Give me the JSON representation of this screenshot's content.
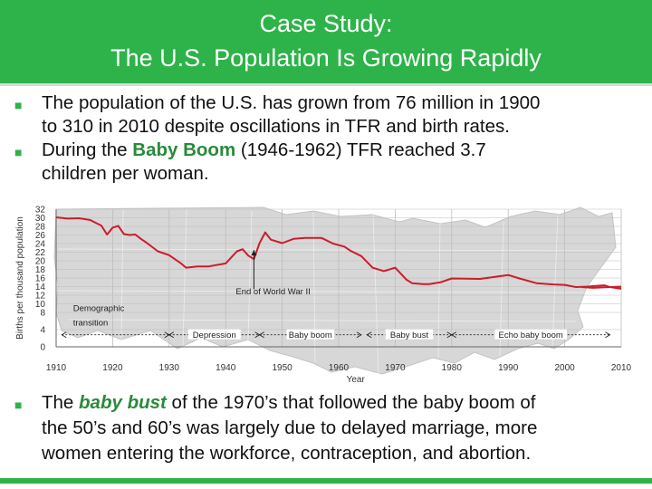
{
  "slide": {
    "title_line1": "Case Study:",
    "title_line2": "The U.S. Population Is Growing Rapidly",
    "bullet1": {
      "line1": "The population of the U.S. has grown from 76 million in 1900",
      "line2": "to 310 in 2010 despite oscillations in TFR and birth rates."
    },
    "bullet2": {
      "prefix": "During the ",
      "highlight": "Baby Boom",
      "suffix": " (1946-1962) TFR reached 3.7",
      "line2": "children per woman."
    },
    "bullet3": {
      "prefix": "The ",
      "highlight": "baby bust",
      "suffix": " of the 1970’s that followed the baby boom of",
      "line2": "the 50’s and 60’s was largely due to delayed marriage, more",
      "line3": "women entering the workforce, contraception, and abortion."
    }
  },
  "colors": {
    "accent": "#2eb34a",
    "highlight_text": "#2a8a3a",
    "line": "#cc1c2c",
    "map": "#d3d3d3"
  },
  "chart_data": {
    "type": "line",
    "xlabel": "Year",
    "ylabel": "Births per thousand population",
    "xlim": [
      1910,
      2010
    ],
    "ylim": [
      0,
      32
    ],
    "x_ticks": [
      "1910",
      "1920",
      "1930",
      "1940",
      "1950",
      "1960",
      "1970",
      "1980",
      "1990",
      "2000",
      "2010"
    ],
    "y_ticks": [
      "0",
      "4",
      "8",
      "10",
      "12",
      "14",
      "16",
      "18",
      "20",
      "22",
      "24",
      "26",
      "28",
      "30",
      "32"
    ],
    "grid": true,
    "series": [
      {
        "x": [
          1910,
          1912,
          1914,
          1916,
          1918,
          1919,
          1920,
          1921,
          1922,
          1923,
          1924,
          1925,
          1926,
          1928,
          1930,
          1932,
          1933,
          1935,
          1937,
          1940,
          1942,
          1943,
          1944,
          1945,
          1946,
          1947,
          1948,
          1950,
          1952,
          1954,
          1957,
          1959,
          1961,
          1962,
          1964,
          1966,
          1968,
          1970,
          1972,
          1973,
          1975,
          1976,
          1978,
          1980,
          1985,
          1990,
          1992,
          1995,
          1998,
          2000,
          2002,
          2004,
          2006,
          2007,
          2008,
          2010
        ],
        "y": [
          30.1,
          29.8,
          29.9,
          29.5,
          28.2,
          26.1,
          27.7,
          28.1,
          26.2,
          26.0,
          26.1,
          25.1,
          24.2,
          22.2,
          21.3,
          19.5,
          18.4,
          18.7,
          18.7,
          19.4,
          22.2,
          22.7,
          21.2,
          20.4,
          24.1,
          26.6,
          24.9,
          24.1,
          25.1,
          25.3,
          25.3,
          24.0,
          23.3,
          22.4,
          21.1,
          18.4,
          17.6,
          18.4,
          15.6,
          14.8,
          14.6,
          14.6,
          15.0,
          15.9,
          15.8,
          16.7,
          15.9,
          14.8,
          14.5,
          14.4,
          13.9,
          14.0,
          14.2,
          14.3,
          13.9,
          13.5
        ]
      },
      {
        "x": [
          2003,
          2005,
          2008,
          2010
        ],
        "y": [
          13.9,
          13.7,
          13.9,
          14.0
        ]
      }
    ],
    "annotations": [
      "End of World War II",
      "Demographic transition",
      "Depression",
      "Baby boom",
      "Baby bust",
      "Echo baby boom"
    ]
  }
}
